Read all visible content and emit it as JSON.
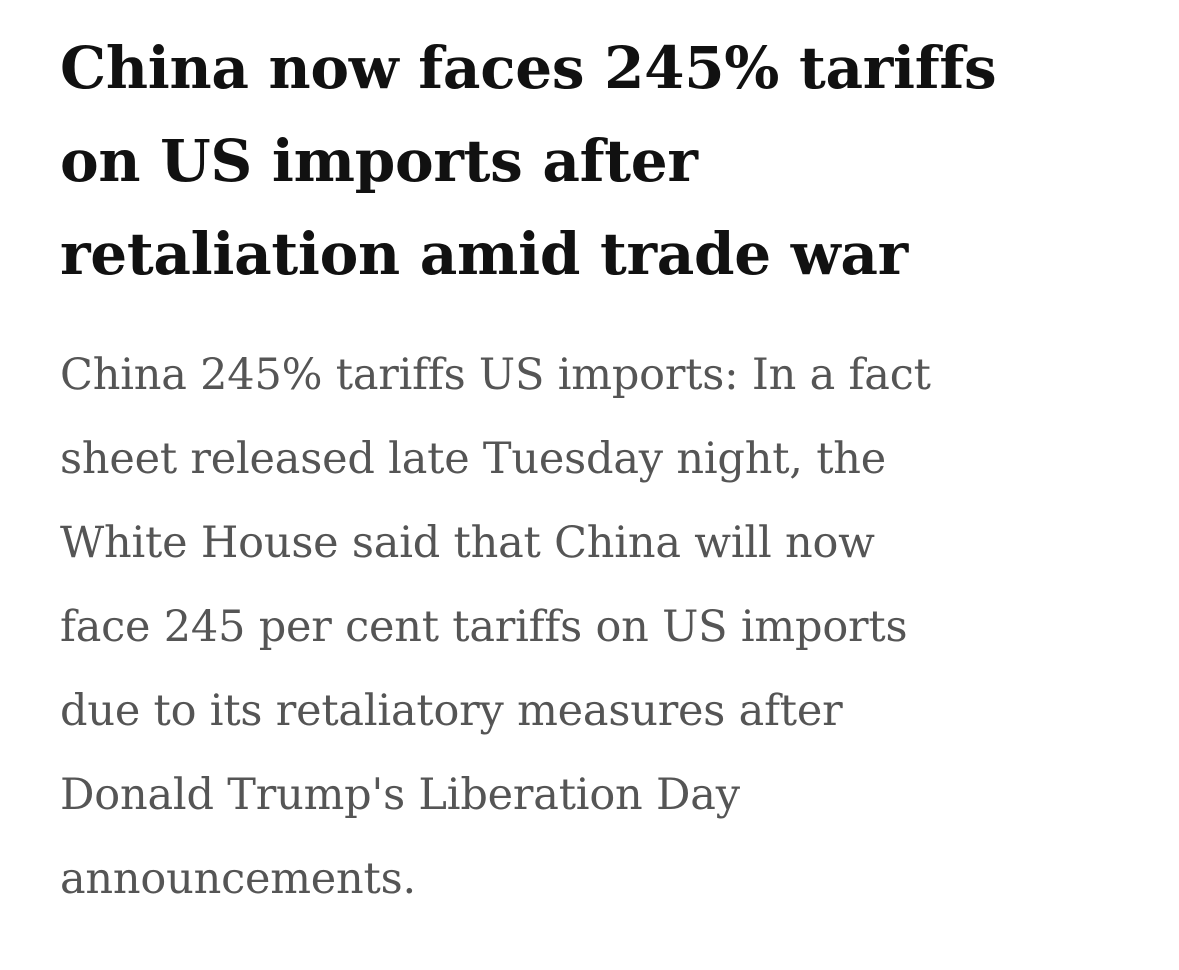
{
  "article": {
    "headline_lines": [
      "China now faces 245% tariffs",
      "on US imports after",
      "retaliation amid trade war"
    ],
    "summary_lines": [
      "China 245% tariffs US imports: In a fact",
      "sheet released late Tuesday night, the",
      "White House said that China will now",
      "face 245 per cent tariffs on US imports",
      "due to its retaliatory measures after",
      "Donald Trump's Liberation Day",
      "announcements."
    ]
  },
  "colors": {
    "headline": "#111111",
    "summary": "#555555",
    "background": "#ffffff"
  }
}
